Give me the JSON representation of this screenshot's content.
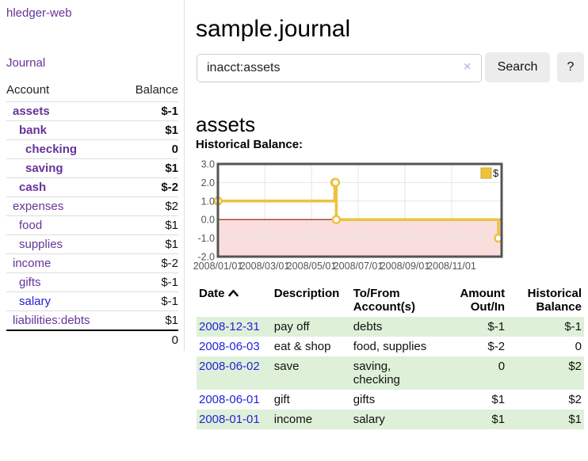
{
  "app": {
    "title": "hledger-web"
  },
  "sidebar": {
    "journal_link": "Journal",
    "accounts": {
      "col_account": "Account",
      "col_balance": "Balance",
      "rows": [
        {
          "name": "assets",
          "depth": 1,
          "bold": true,
          "link_color": "purple",
          "balance": "$-1",
          "balance_style": "neg-strong"
        },
        {
          "name": "bank",
          "depth": 2,
          "bold": true,
          "link_color": "purple",
          "balance": "$1",
          "balance_style": "pos"
        },
        {
          "name": "checking",
          "depth": 3,
          "bold": true,
          "link_color": "purple",
          "balance": "0",
          "balance_style": "pos"
        },
        {
          "name": "saving",
          "depth": 3,
          "bold": true,
          "link_color": "purple",
          "balance": "$1",
          "balance_style": "pos"
        },
        {
          "name": "cash",
          "depth": 2,
          "bold": true,
          "link_color": "purple",
          "balance": "$-2",
          "balance_style": "neg-strong"
        },
        {
          "name": "expenses",
          "depth": 1,
          "bold": false,
          "link_color": "purple",
          "balance": "$2",
          "balance_style": "pos"
        },
        {
          "name": "food",
          "depth": 2,
          "bold": false,
          "link_color": "purple",
          "balance": "$1",
          "balance_style": "pos"
        },
        {
          "name": "supplies",
          "depth": 2,
          "bold": false,
          "link_color": "purple",
          "balance": "$1",
          "balance_style": "pos"
        },
        {
          "name": "income",
          "depth": 1,
          "bold": false,
          "link_color": "purple",
          "balance": "$-2",
          "balance_style": "neg-light"
        },
        {
          "name": "gifts",
          "depth": 2,
          "bold": false,
          "link_color": "purple",
          "balance": "$-1",
          "balance_style": "neg-light"
        },
        {
          "name": "salary",
          "depth": 2,
          "bold": false,
          "link_color": "blue",
          "balance": "$-1",
          "balance_style": "neg-light"
        },
        {
          "name": "liabilities:debts",
          "depth": 1,
          "bold": false,
          "link_color": "purple",
          "balance": "$1",
          "balance_style": "pos"
        }
      ],
      "total": "0"
    }
  },
  "main": {
    "title": "sample.journal",
    "search": {
      "value": "inacct:assets",
      "clear_icon": "×",
      "search_button": "Search",
      "help_button": "?"
    },
    "account_heading": "assets",
    "chart_heading": "Historical Balance:"
  },
  "chart_data": {
    "type": "line",
    "step": true,
    "title": "Historical Balance",
    "series": [
      {
        "name": "$",
        "color": "#EDC240",
        "points": [
          {
            "date": "2008-01-01",
            "value": 1
          },
          {
            "date": "2008-06-01",
            "value": 2
          },
          {
            "date": "2008-06-02",
            "value": 2
          },
          {
            "date": "2008-06-03",
            "value": 0
          },
          {
            "date": "2008-12-31",
            "value": -1
          }
        ]
      }
    ],
    "ylim": [
      -2,
      3
    ],
    "yticks": [
      "3.0",
      "2.0",
      "1.0",
      "0.0",
      "-1.0",
      "-2.0"
    ],
    "xticks": [
      "2008/01/01",
      "2008/03/01",
      "2008/05/01",
      "2008/07/01",
      "2008/09/01",
      "2008/11/01"
    ],
    "legend": {
      "position": "top-right",
      "label": "$"
    },
    "grid": true,
    "negative_region": true
  },
  "register": {
    "headers": {
      "date": "Date",
      "description": "Description",
      "accounts": "To/From\nAccount(s)",
      "amount": "Amount\nOut/In",
      "balance": "Historical\nBalance"
    },
    "rows": [
      {
        "date": "2008-12-31",
        "description": "pay off",
        "accounts": "debts",
        "amount": "$-1",
        "amount_neg": true,
        "balance": "$-1",
        "balance_neg": true,
        "highlight": true
      },
      {
        "date": "2008-06-03",
        "description": "eat & shop",
        "accounts": "food, supplies",
        "amount": "$-2",
        "amount_neg": true,
        "balance": "0",
        "balance_neg": false,
        "highlight": false
      },
      {
        "date": "2008-06-02",
        "description": "save",
        "accounts": "saving,\nchecking",
        "amount": "0",
        "amount_neg": false,
        "balance": "$2",
        "balance_neg": false,
        "highlight": true
      },
      {
        "date": "2008-06-01",
        "description": "gift",
        "accounts": "gifts",
        "amount": "$1",
        "amount_neg": false,
        "balance": "$2",
        "balance_neg": false,
        "highlight": false
      },
      {
        "date": "2008-01-01",
        "description": "income",
        "accounts": "salary",
        "amount": "$1",
        "amount_neg": false,
        "balance": "$1",
        "balance_neg": false,
        "highlight": true
      }
    ]
  },
  "colors": {
    "link_purple": "#663399",
    "link_blue": "#2222dd",
    "negative_strong": "#9c1a1a",
    "negative_light": "#c27d7f",
    "row_highlight_green": "#dff0d8",
    "series_yellow": "#EDC240",
    "negative_region_pink": "#fadddd",
    "zero_line_red": "#8b0000",
    "axis_label_gray": "#545454",
    "divider_gray": "#dddddd",
    "button_gray": "#ececec"
  }
}
